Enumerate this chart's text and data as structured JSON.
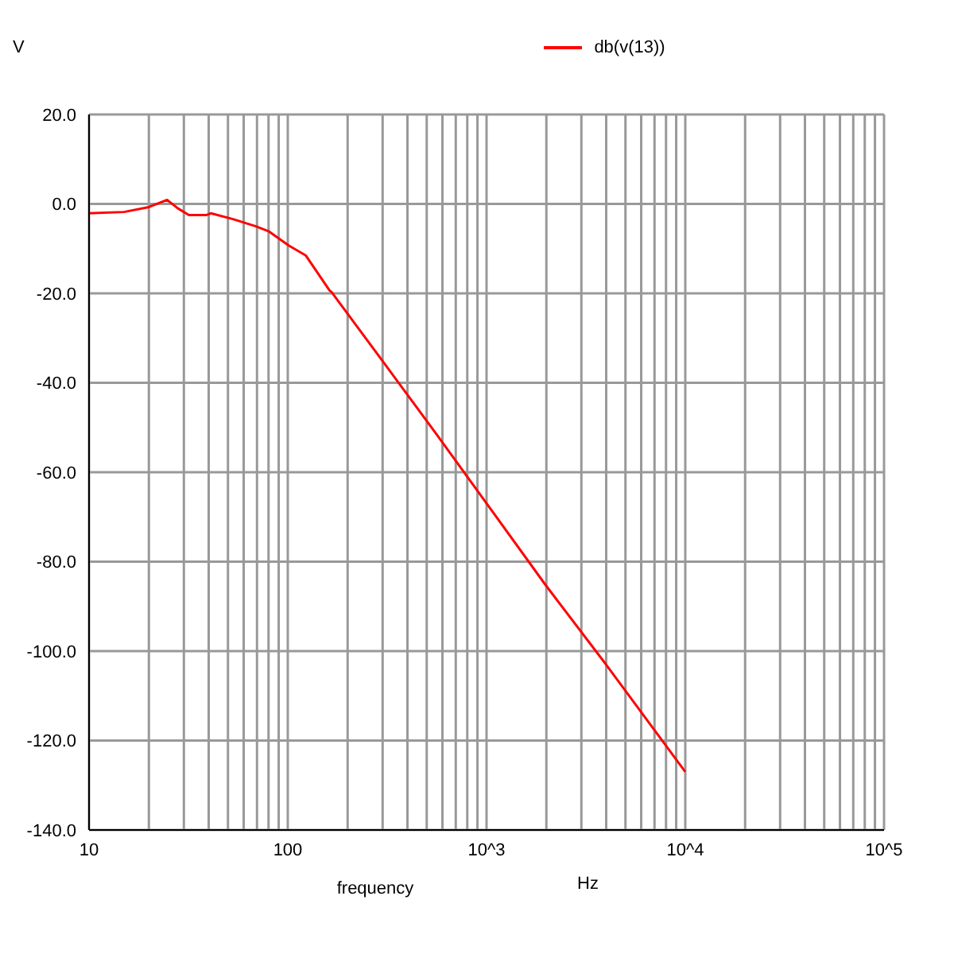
{
  "chart_data": {
    "type": "line",
    "ylabel": "V",
    "xlabel": "frequency",
    "annotations": [
      "Hz"
    ],
    "log": "x",
    "grid": true,
    "legend": "top",
    "marker": "none",
    "line_style": "solid",
    "x": [
      10,
      15,
      20,
      24.7,
      28,
      31.8,
      38.8,
      41,
      53,
      69,
      80,
      101,
      123,
      162,
      166,
      304,
      556,
      1005,
      1980,
      4040,
      10000
    ],
    "series": [
      {
        "name": "db(v(13))",
        "color": "#ff0000",
        "values": [
          -2.1,
          -1.8,
          -0.7,
          0.9,
          -1.0,
          -2.5,
          -2.5,
          -2.1,
          -3.4,
          -5.0,
          -6.1,
          -9.3,
          -11.5,
          -19.3,
          -19.7,
          -35.5,
          -51.3,
          -67.1,
          -85.2,
          -103.3,
          -127.0
        ]
      }
    ],
    "xlim": [
      10,
      100000
    ],
    "xticks": [
      10,
      {
        "value": 20,
        "label": null
      },
      {
        "value": 30,
        "label": null
      },
      {
        "value": 40,
        "label": null
      },
      {
        "value": 50,
        "label": null
      },
      {
        "value": 60,
        "label": null
      },
      {
        "value": 70,
        "label": null
      },
      {
        "value": 80,
        "label": null
      },
      {
        "value": 90,
        "label": null
      },
      100,
      {
        "value": 200,
        "label": null
      },
      {
        "value": 300,
        "label": null
      },
      {
        "value": 400,
        "label": null
      },
      {
        "value": 500,
        "label": null
      },
      {
        "value": 600,
        "label": null
      },
      {
        "value": 700,
        "label": null
      },
      {
        "value": 800,
        "label": null
      },
      {
        "value": 900,
        "label": null
      },
      {
        "value": 1000,
        "label": "10^3"
      },
      {
        "value": 2000,
        "label": null
      },
      {
        "value": 3000,
        "label": null
      },
      {
        "value": 4000,
        "label": null
      },
      {
        "value": 5000,
        "label": null
      },
      {
        "value": 6000,
        "label": null
      },
      {
        "value": 7000,
        "label": null
      },
      {
        "value": 8000,
        "label": null
      },
      {
        "value": 9000,
        "label": null
      },
      {
        "value": 10000,
        "label": "10^4"
      },
      {
        "value": 20000,
        "label": null
      },
      {
        "value": 30000,
        "label": null
      },
      {
        "value": 40000,
        "label": null
      },
      {
        "value": 50000,
        "label": null
      },
      {
        "value": 60000,
        "label": null
      },
      {
        "value": 70000,
        "label": null
      },
      {
        "value": 80000,
        "label": null
      },
      {
        "value": 90000,
        "label": null
      },
      {
        "value": 100000,
        "label": "10^5"
      }
    ],
    "ylim": [
      -140,
      20
    ],
    "yticks": [
      {
        "value": -140,
        "label": "-140.0"
      },
      {
        "value": -120,
        "label": "-120.0"
      },
      {
        "value": -100,
        "label": "-100.0"
      },
      {
        "value": -80,
        "label": "-80.0"
      },
      {
        "value": -60,
        "label": "-60.0"
      },
      {
        "value": -40,
        "label": "-40.0"
      },
      {
        "value": -20,
        "label": "-20.0"
      },
      {
        "value": 0,
        "label": "0.0"
      },
      {
        "value": 20,
        "label": "20.0"
      }
    ]
  }
}
